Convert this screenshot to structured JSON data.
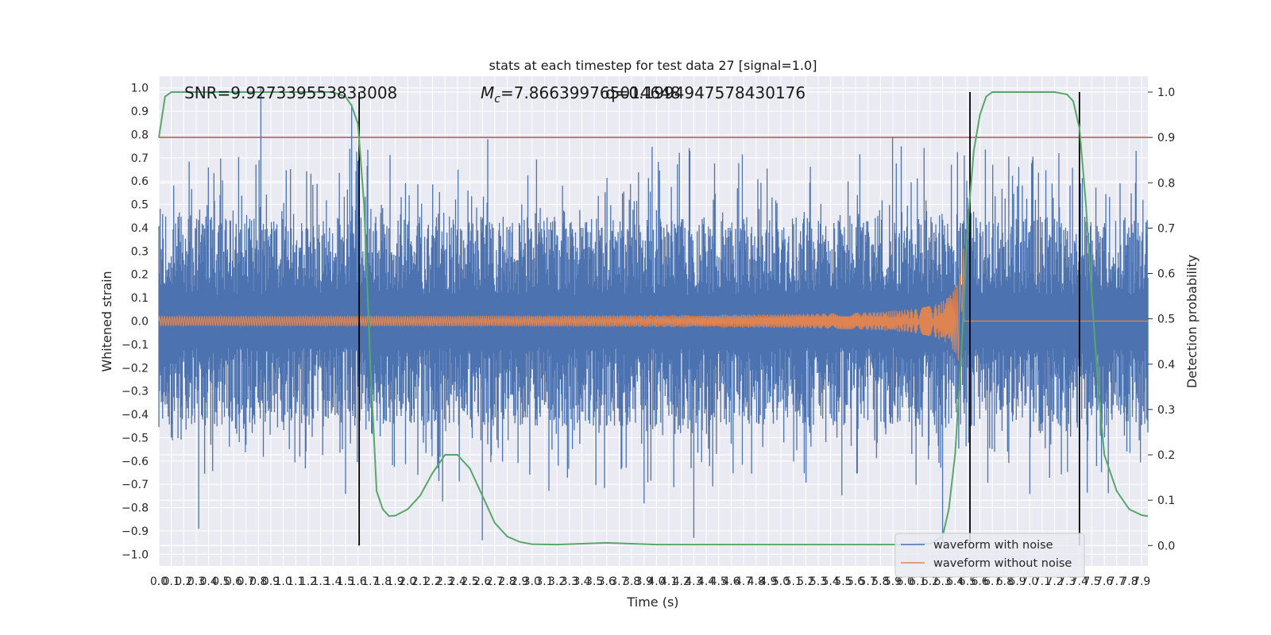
{
  "chart_data": {
    "type": "line",
    "title": "stats at each timestep for test data 27 [signal=1.0]",
    "xlabel": "Time (s)",
    "ylabel": "Whitened strain",
    "y2label": "Detection probability",
    "xlim": [
      0.0,
      7.95
    ],
    "ylim": [
      -1.05,
      1.05
    ],
    "y2lim": [
      -0.045,
      1.035
    ],
    "x_tick_labels": [
      "0.0",
      "0.1",
      "0.2",
      "0.3",
      "0.4",
      "0.5",
      "0.6",
      "0.7",
      "0.8",
      "0.9",
      "1.0",
      "1.1",
      "1.2",
      "1.3",
      "1.4",
      "1.5",
      "1.6",
      "1.7",
      "1.8",
      "1.9",
      "2.0",
      "2.1",
      "2.2",
      "2.3",
      "2.4",
      "2.5",
      "2.6",
      "2.7",
      "2.8",
      "2.9",
      "3.0",
      "3.1",
      "3.2",
      "3.3",
      "3.4",
      "3.5",
      "3.6",
      "3.7",
      "3.8",
      "3.9",
      "4.0",
      "4.1",
      "4.2",
      "4.3",
      "4.4",
      "4.5",
      "4.6",
      "4.7",
      "4.8",
      "4.9",
      "5.0",
      "5.1",
      "5.2",
      "5.3",
      "5.4",
      "5.5",
      "5.6",
      "5.7",
      "5.8",
      "5.9",
      "6.0",
      "6.1",
      "6.2",
      "6.3",
      "6.4",
      "6.5",
      "6.6",
      "6.7",
      "6.8",
      "6.9",
      "7.0",
      "7.1",
      "7.2",
      "7.3",
      "7.4",
      "7.5",
      "7.6",
      "7.7",
      "7.8",
      "7.9"
    ],
    "y_tick_labels": [
      "1.0",
      "0.9",
      "0.8",
      "0.7",
      "0.6",
      "0.5",
      "0.4",
      "0.3",
      "0.2",
      "0.1",
      "0.0",
      "−0.1",
      "−0.2",
      "−0.3",
      "−0.4",
      "−0.5",
      "−0.6",
      "−0.7",
      "−0.8",
      "−0.9",
      "−1.0"
    ],
    "y2_tick_labels": [
      "1.0",
      "0.9",
      "0.8",
      "0.7",
      "0.6",
      "0.5",
      "0.4",
      "0.3",
      "0.2",
      "0.1",
      "0.0"
    ],
    "annotations": {
      "snr": "SNR=9.927339553833008",
      "mc_symbol": "M",
      "mc_sub": "c",
      "mc_value": "=7.866399765014648",
      "q_value": "q=0.1994947578430176"
    },
    "threshold": {
      "value": 0.9,
      "color": "#c44e52"
    },
    "vertical_lines_x": [
      1.61,
      6.52,
      7.4
    ],
    "legend": {
      "position": "lower-right",
      "items": [
        {
          "label": "waveform with noise",
          "color": "#4c72b0"
        },
        {
          "label": "waveform without noise",
          "color": "#dd8452"
        }
      ]
    },
    "detection_probability": {
      "color": "#55a868",
      "x": [
        0.0,
        0.05,
        0.1,
        0.2,
        0.4,
        0.8,
        1.2,
        1.4,
        1.5,
        1.55,
        1.6,
        1.65,
        1.7,
        1.75,
        1.8,
        1.85,
        1.9,
        2.0,
        2.1,
        2.2,
        2.3,
        2.4,
        2.5,
        2.6,
        2.7,
        2.8,
        2.9,
        3.0,
        3.2,
        3.4,
        3.6,
        3.8,
        4.0,
        4.5,
        5.0,
        5.5,
        6.0,
        6.2,
        6.3,
        6.35,
        6.4,
        6.45,
        6.5,
        6.55,
        6.6,
        6.65,
        6.7,
        6.8,
        6.9,
        7.0,
        7.2,
        7.3,
        7.35,
        7.4,
        7.45,
        7.5,
        7.55,
        7.6,
        7.7,
        7.8,
        7.9,
        7.95
      ],
      "y": [
        0.9,
        0.99,
        1.0,
        1.0,
        1.0,
        1.0,
        1.0,
        1.0,
        0.99,
        0.97,
        0.93,
        0.75,
        0.4,
        0.12,
        0.08,
        0.065,
        0.066,
        0.08,
        0.11,
        0.16,
        0.2,
        0.2,
        0.17,
        0.11,
        0.05,
        0.02,
        0.008,
        0.003,
        0.002,
        0.004,
        0.006,
        0.004,
        0.002,
        0.002,
        0.002,
        0.002,
        0.002,
        0.004,
        0.02,
        0.08,
        0.2,
        0.42,
        0.7,
        0.87,
        0.95,
        0.99,
        1.0,
        1.0,
        1.0,
        1.0,
        1.0,
        0.995,
        0.98,
        0.92,
        0.76,
        0.55,
        0.35,
        0.2,
        0.12,
        0.08,
        0.067,
        0.065
      ]
    },
    "waveform_without_noise": {
      "color": "#dd8452",
      "chirp_end_x": 6.47,
      "peak_amplitude": 0.32,
      "start_amplitude": 0.018
    },
    "waveform_with_noise": {
      "color": "#4c72b0",
      "band_halfwidth": 0.45,
      "notable_peaks": [
        [
          0.82,
          1.0
        ],
        [
          1.55,
          0.93
        ],
        [
          0.32,
          -0.89
        ],
        [
          2.6,
          -0.94
        ],
        [
          4.3,
          -0.93
        ],
        [
          6.3,
          -0.95
        ]
      ]
    },
    "grid": true,
    "background": "#eaeaf2"
  }
}
